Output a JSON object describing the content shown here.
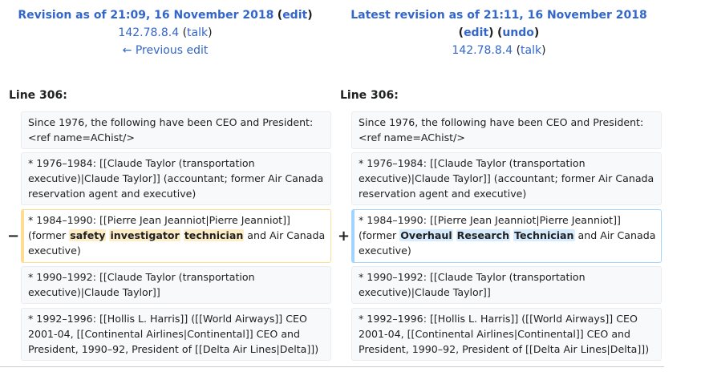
{
  "left_header": {
    "title": "Revision as of 21:09, 16 November 2018",
    "edit_link": "edit",
    "user": "142.78.8.4",
    "talk": "talk",
    "prev_edit": "← Previous edit"
  },
  "right_header": {
    "title": "Latest revision as of 21:11, 16 November 2018",
    "edit_link": "edit",
    "undo_link": "undo",
    "user": "142.78.8.4",
    "talk": "talk"
  },
  "line_label_left": "Line 306:",
  "line_label_right": "Line 306:",
  "markers": {
    "minus": "−",
    "plus": "+"
  },
  "context_rows": [
    "Since 1976, the following have been CEO and President:<ref name=AChist/>",
    "* 1976–1984: [[Claude Taylor (transportation executive)|Claude Taylor]] (accountant; former Air Canada reservation agent and executive)",
    "* 1990–1992: [[Claude Taylor (transportation executive)|Claude Taylor]]",
    "* 1992–1996: [[Hollis L. Harris]] ([[World Airways]] CEO 2001-04, [[Continental Airlines|Continental]] CEO and President, 1990–92, President of [[Delta Air Lines|Delta]])"
  ],
  "changed_row": {
    "prefix": "* 1984–1990: [[Pierre Jean Jeanniot|Pierre Jeanniot]] (former ",
    "deleted_words": [
      "safety",
      "investigator",
      "technician"
    ],
    "added_words": [
      "Overhaul",
      "Research",
      "Technician"
    ],
    "suffix": " and Air Canada executive)"
  },
  "colors": {
    "link": "#3366cc",
    "deleted_border": "#fedc93",
    "deleted_highlight": "#feeec8",
    "added_border": "#a3d3ff",
    "added_highlight": "#d8ecff",
    "context_bg": "#f8f9fa"
  }
}
